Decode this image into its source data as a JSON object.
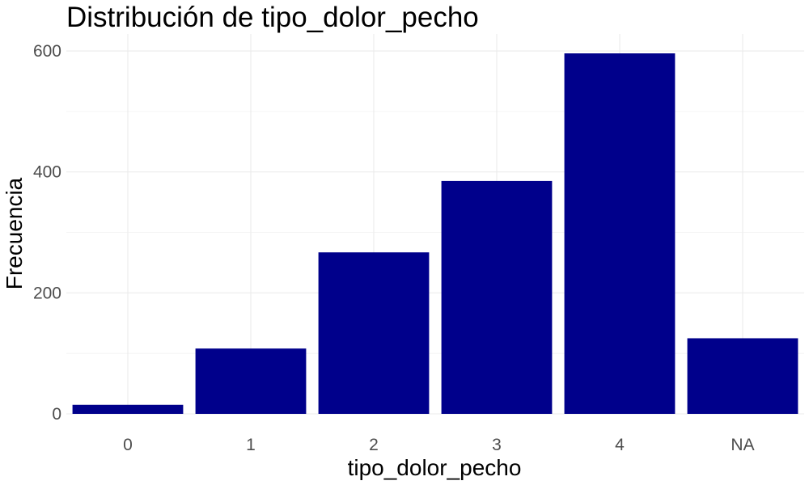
{
  "chart_data": {
    "type": "bar",
    "title": "Distribución de tipo_dolor_pecho",
    "xlabel": "tipo_dolor_pecho",
    "ylabel": "Frecuencia",
    "categories": [
      "0",
      "1",
      "2",
      "3",
      "4",
      "NA"
    ],
    "values": [
      15,
      108,
      267,
      385,
      596,
      125
    ],
    "ylim": [
      0,
      625
    ],
    "yticks": [
      0,
      200,
      400,
      600
    ],
    "yticks_label": [
      "0",
      "200",
      "400",
      "600"
    ],
    "grid": true,
    "legend": "none",
    "bar_color": "#00008b"
  }
}
